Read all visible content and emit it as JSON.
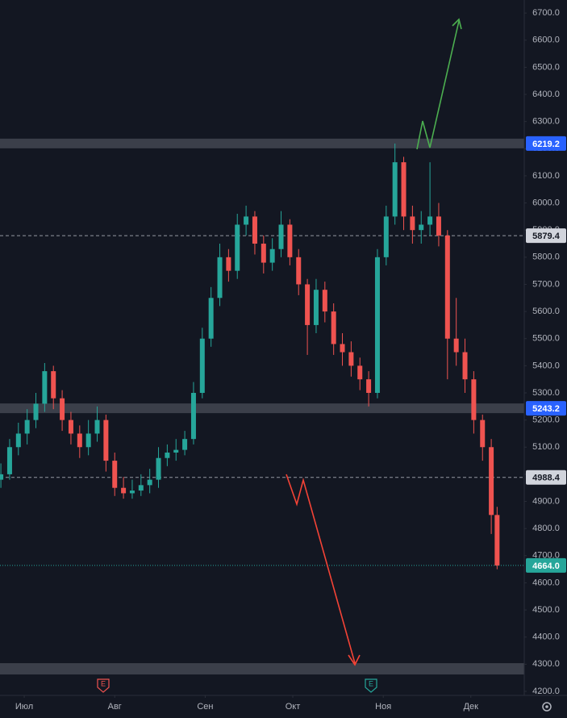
{
  "chart_data": {
    "type": "candlestick",
    "x": [
      -8,
      -5,
      -2,
      1,
      4,
      7,
      10,
      13,
      16,
      19,
      22,
      25,
      28,
      31,
      34,
      37,
      40,
      43,
      46,
      49,
      52,
      55,
      58,
      61,
      64,
      67,
      70,
      73,
      76,
      79,
      82,
      85,
      88,
      91,
      94,
      97,
      100,
      103,
      106,
      109,
      112,
      115,
      118,
      121,
      124,
      127,
      130,
      133,
      136,
      139,
      142,
      145,
      148,
      151,
      154,
      157,
      160,
      162
    ],
    "open": [
      4980,
      5000,
      5100,
      5150,
      5200,
      5260,
      5380,
      5280,
      5200,
      5150,
      5100,
      5150,
      5200,
      5050,
      4950,
      4930,
      4940,
      4960,
      4980,
      5060,
      5080,
      5090,
      5130,
      5300,
      5500,
      5650,
      5800,
      5750,
      5920,
      5950,
      5850,
      5780,
      5830,
      5920,
      5800,
      5700,
      5550,
      5680,
      5600,
      5480,
      5450,
      5400,
      5350,
      5300,
      5800,
      5950,
      6150,
      5950,
      5900,
      5920,
      5950,
      5880,
      5500,
      5450,
      5350,
      5200,
      5100,
      4850
    ],
    "high": [
      5040,
      5130,
      5190,
      5240,
      5300,
      5410,
      5400,
      5310,
      5230,
      5180,
      5200,
      5250,
      5220,
      5080,
      4990,
      4980,
      5000,
      5020,
      5100,
      5110,
      5130,
      5160,
      5340,
      5540,
      5690,
      5850,
      5830,
      5960,
      5990,
      5970,
      5880,
      5870,
      5970,
      5940,
      5830,
      5720,
      5720,
      5710,
      5630,
      5520,
      5490,
      5430,
      5380,
      5830,
      5990,
      6219,
      6170,
      5990,
      5970,
      6150,
      6000,
      5900,
      5650,
      5500,
      5380,
      5220,
      5130,
      4880
    ],
    "low": [
      4950,
      4980,
      5070,
      5110,
      5170,
      5230,
      5240,
      5160,
      5110,
      5060,
      5070,
      5120,
      5010,
      4920,
      4910,
      4910,
      4920,
      4930,
      4950,
      5030,
      5050,
      5070,
      5110,
      5280,
      5470,
      5620,
      5710,
      5720,
      5880,
      5810,
      5740,
      5750,
      5800,
      5770,
      5660,
      5440,
      5520,
      5560,
      5440,
      5400,
      5360,
      5310,
      5250,
      5280,
      5770,
      5920,
      5900,
      5850,
      5850,
      5880,
      5840,
      5350,
      5400,
      5300,
      5150,
      5050,
      4780,
      4650
    ],
    "close": [
      5000,
      5100,
      5150,
      5200,
      5260,
      5380,
      5280,
      5200,
      5150,
      5100,
      5150,
      5200,
      5050,
      4950,
      4930,
      4940,
      4960,
      4980,
      5060,
      5080,
      5090,
      5130,
      5300,
      5500,
      5650,
      5800,
      5750,
      5920,
      5950,
      5850,
      5780,
      5830,
      5920,
      5800,
      5700,
      5550,
      5680,
      5600,
      5480,
      5450,
      5400,
      5350,
      5300,
      5800,
      5950,
      6150,
      5950,
      5900,
      5920,
      5950,
      5880,
      5500,
      5450,
      5350,
      5200,
      5100,
      4850,
      4664
    ],
    "up_color": "#26a69a",
    "down_color": "#ef5350",
    "xlim": [
      -8.3,
      171.3
    ],
    "xticks": [
      {
        "value": 0,
        "label": "Июл"
      },
      {
        "value": 31,
        "label": "Авг"
      },
      {
        "value": 62,
        "label": "Сен"
      },
      {
        "value": 92,
        "label": "Окт"
      },
      {
        "value": 123,
        "label": "Ноя"
      },
      {
        "value": 153,
        "label": "Дек"
      }
    ],
    "ylim": [
      4185,
      6748
    ],
    "yticks": [
      {
        "value": 4200,
        "label": "4200.0"
      },
      {
        "value": 4300,
        "label": "4300.0"
      },
      {
        "value": 4400,
        "label": "4400.0"
      },
      {
        "value": 4500,
        "label": "4500.0"
      },
      {
        "value": 4600,
        "label": "4600.0"
      },
      {
        "value": 4700,
        "label": "4700.0"
      },
      {
        "value": 4800,
        "label": "4800.0"
      },
      {
        "value": 4900,
        "label": "4900.0"
      },
      {
        "value": 5000,
        "label": "5000.0"
      },
      {
        "value": 5100,
        "label": "5100.0"
      },
      {
        "value": 5200,
        "label": "5200.0"
      },
      {
        "value": 5300,
        "label": "5300.0"
      },
      {
        "value": 5400,
        "label": "5400.0"
      },
      {
        "value": 5500,
        "label": "5500.0"
      },
      {
        "value": 5600,
        "label": "5600.0"
      },
      {
        "value": 5700,
        "label": "5700.0"
      },
      {
        "value": 5800,
        "label": "5800.0"
      },
      {
        "value": 5900,
        "label": "5900.0"
      },
      {
        "value": 6000,
        "label": "6000.0"
      },
      {
        "value": 6100,
        "label": "6100.0"
      },
      {
        "value": 6200,
        "label": "6200.0"
      },
      {
        "value": 6300,
        "label": "6300.0"
      },
      {
        "value": 6400,
        "label": "6400.0"
      },
      {
        "value": 6500,
        "label": "6500.0"
      },
      {
        "value": 6600,
        "label": "6600.0"
      },
      {
        "value": 6700,
        "label": "6700.0"
      }
    ],
    "price_lines": [
      {
        "value": 6219.2,
        "label": "6219.2",
        "style": "band",
        "color": "#2962ff"
      },
      {
        "value": 5879.4,
        "label": "5879.4",
        "style": "dashed",
        "color": "#d1d4dc"
      },
      {
        "value": 5243.2,
        "label": "5243.2",
        "style": "band",
        "color": "#2962ff"
      },
      {
        "value": 4988.4,
        "label": "4988.4",
        "style": "dashed",
        "color": "#d1d4dc"
      },
      {
        "value": 4664,
        "label": "4664.0",
        "style": "dotted",
        "color": "#26a69a"
      }
    ],
    "zones": [
      4283
    ],
    "events": [
      {
        "label": "E",
        "color": "#ef5350"
      },
      {
        "label": "E",
        "color": "#26a69a"
      }
    ]
  }
}
